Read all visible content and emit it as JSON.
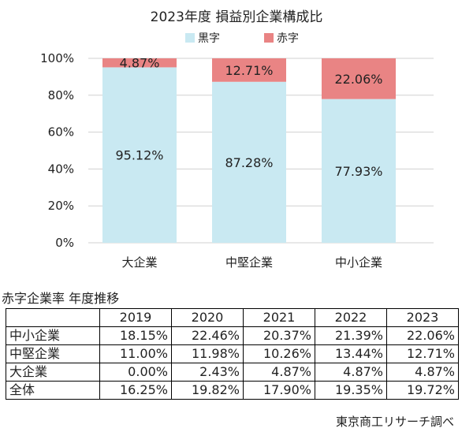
{
  "chart_data": {
    "type": "bar",
    "stacked": true,
    "title": "2023年度 損益別企業構成比",
    "categories": [
      "大企業",
      "中堅企業",
      "中小企業"
    ],
    "series": [
      {
        "name": "黒字",
        "values": [
          95.12,
          87.28,
          77.93
        ],
        "labels": [
          "95.12%",
          "87.28%",
          "77.93%"
        ],
        "color": "#c9e9f2"
      },
      {
        "name": "赤字",
        "values": [
          4.87,
          12.71,
          22.06
        ],
        "labels": [
          "4.87%",
          "12.71%",
          "22.06%"
        ],
        "color": "#e98484"
      }
    ],
    "ylim": [
      0,
      100
    ],
    "yticks": [
      0,
      20,
      40,
      60,
      80,
      100
    ],
    "ytick_labels": [
      "0%",
      "20%",
      "40%",
      "60%",
      "80%",
      "100%"
    ],
    "legend_position": "top-center",
    "grid": true
  },
  "table": {
    "caption": "赤字企業率 年度推移",
    "columns": [
      "2019",
      "2020",
      "2021",
      "2022",
      "2023"
    ],
    "rows": [
      {
        "label": "中小企業",
        "values": [
          "18.15%",
          "22.46%",
          "20.37%",
          "21.39%",
          "22.06%"
        ]
      },
      {
        "label": "中堅企業",
        "values": [
          "11.00%",
          "11.98%",
          "10.26%",
          "13.44%",
          "12.71%"
        ]
      },
      {
        "label": "大企業",
        "values": [
          "0.00%",
          "2.43%",
          "4.87%",
          "4.87%",
          "4.87%"
        ]
      },
      {
        "label": "全体",
        "values": [
          "16.25%",
          "19.82%",
          "17.90%",
          "19.35%",
          "19.72%"
        ]
      }
    ]
  },
  "credit": "東京商工リサーチ調べ"
}
